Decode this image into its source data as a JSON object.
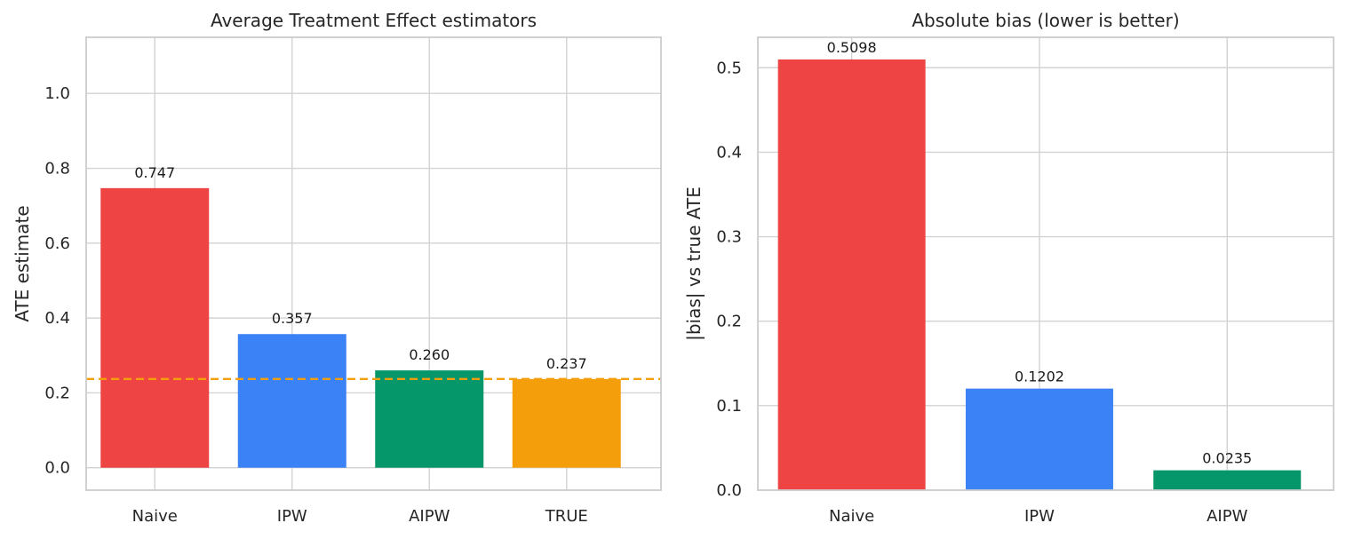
{
  "chart_data": [
    {
      "type": "bar",
      "title": "Average Treatment Effect estimators",
      "xlabel": "",
      "ylabel": "ATE estimate",
      "categories": [
        "Naive",
        "IPW",
        "AIPW",
        "TRUE"
      ],
      "values": [
        0.747,
        0.357,
        0.26,
        0.237
      ],
      "value_labels": [
        "0.747",
        "0.357",
        "0.260",
        "0.237"
      ],
      "colors": [
        "#ef4444",
        "#3b82f6",
        "#059669",
        "#f59e0b"
      ],
      "ylim": [
        -0.06,
        1.15
      ],
      "yticks": [
        0.0,
        0.2,
        0.4,
        0.6,
        0.8,
        1.0
      ],
      "ytick_labels": [
        "0.0",
        "0.2",
        "0.4",
        "0.6",
        "0.8",
        "1.0"
      ],
      "reference_line": {
        "value": 0.237,
        "style": "dashed",
        "color": "#f59e0b"
      },
      "grid": true,
      "legend": false
    },
    {
      "type": "bar",
      "title": "Absolute bias (lower is better)",
      "xlabel": "",
      "ylabel": "|bias| vs true ATE",
      "categories": [
        "Naive",
        "IPW",
        "AIPW"
      ],
      "values": [
        0.5098,
        0.1202,
        0.0235
      ],
      "value_labels": [
        "0.5098",
        "0.1202",
        "0.0235"
      ],
      "colors": [
        "#ef4444",
        "#3b82f6",
        "#059669"
      ],
      "ylim": [
        0.0,
        0.536
      ],
      "yticks": [
        0.0,
        0.1,
        0.2,
        0.3,
        0.4,
        0.5
      ],
      "ytick_labels": [
        "0.0",
        "0.1",
        "0.2",
        "0.3",
        "0.4",
        "0.5"
      ],
      "grid": true,
      "legend": false
    }
  ]
}
